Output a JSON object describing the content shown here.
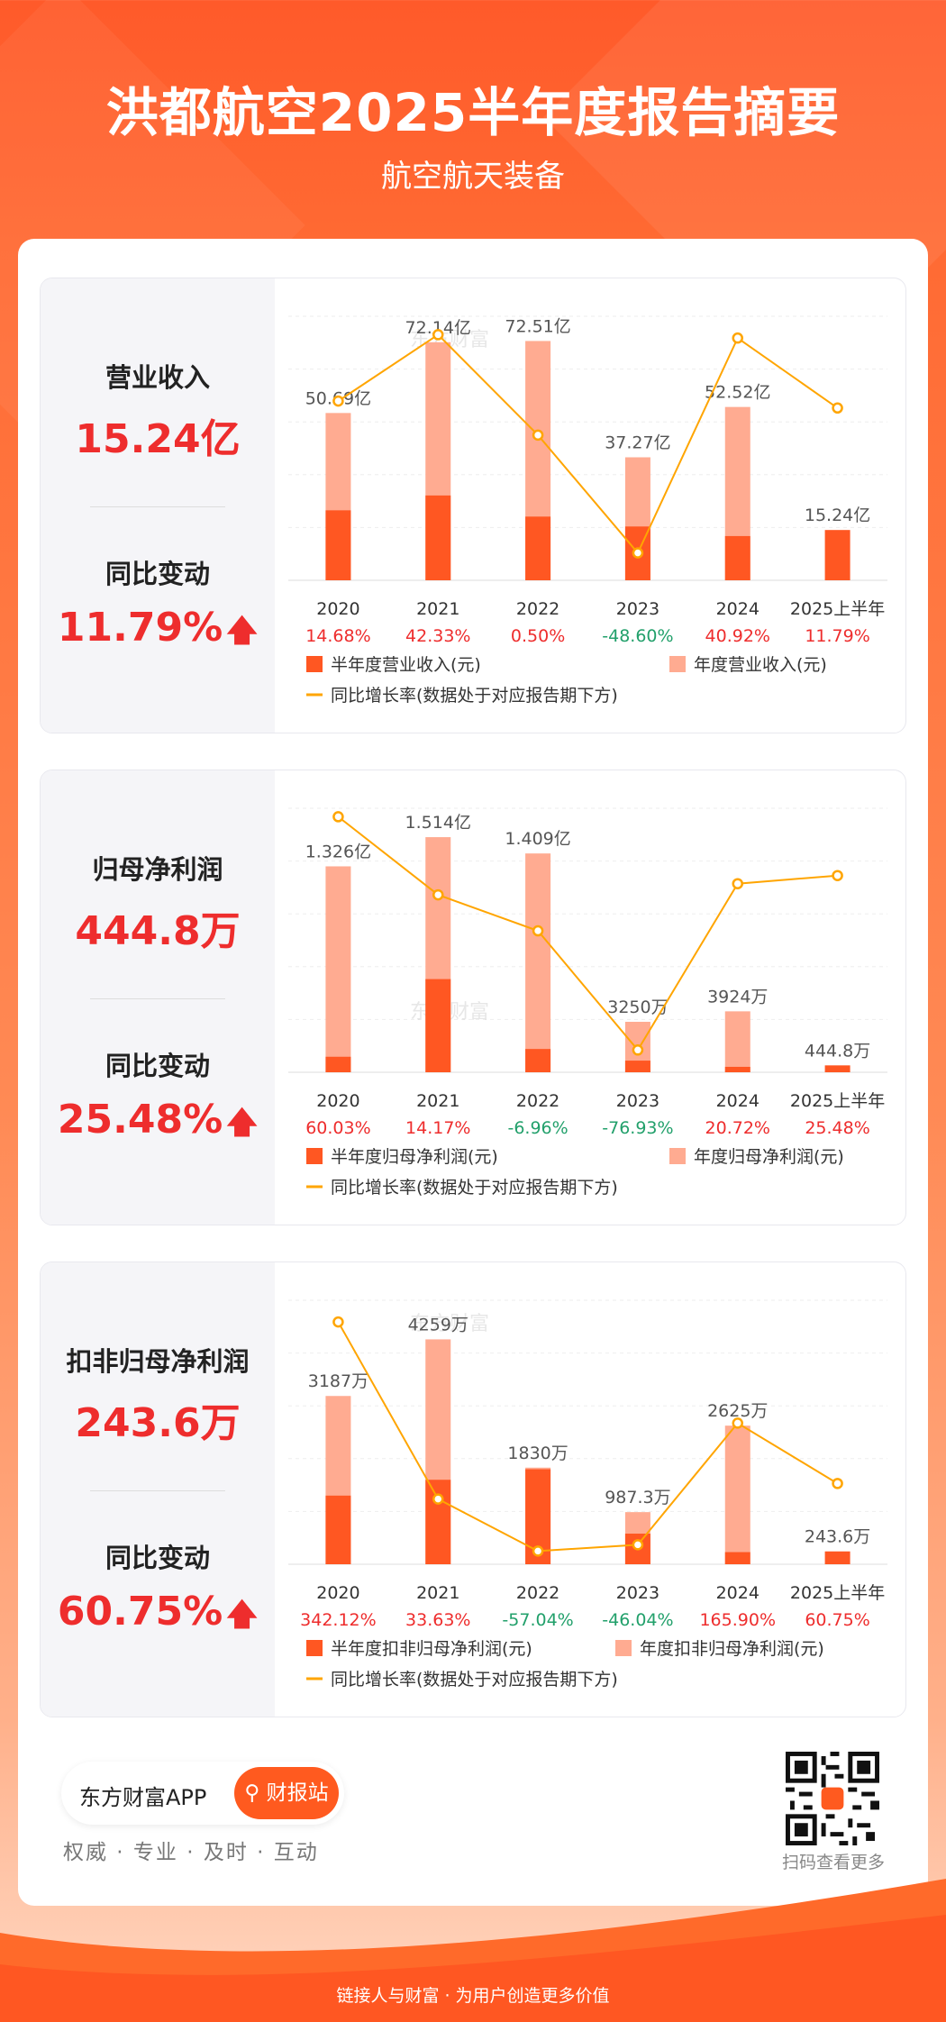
{
  "header": {
    "title": "洪都航空2025半年度报告摘要",
    "subtitle": "航空航天装备"
  },
  "watermark": "东方财富",
  "colors": {
    "half_bar": "#ff5722",
    "annual_bar": "#ffab91",
    "line": "#ffa500",
    "red": "#ee2d2d",
    "green": "#22a06b"
  },
  "panels": [
    {
      "metric_label": "营业收入",
      "metric_value": "15.24亿",
      "change_label": "同比变动",
      "change_value": "11.79%",
      "change_icon": "arrow-up-icon",
      "legend_half": "半年度营业收入(元)",
      "legend_annual": "年度营业收入(元)",
      "legend_line": "同比增长率(数据处于对应报告期下方)",
      "chart_data": {
        "type": "bar",
        "categories": [
          "2020",
          "2021",
          "2022",
          "2023",
          "2024",
          "2025上半年"
        ],
        "series": [
          {
            "name": "半年度营业收入(元)",
            "values": [
              21.2,
              25.7,
              19.3,
              16.3,
              13.4,
              15.24
            ]
          },
          {
            "name": "年度营业收入(元)",
            "values": [
              50.69,
              72.14,
              72.51,
              37.27,
              52.52,
              null
            ]
          }
        ],
        "bar_labels": [
          "50.69亿",
          "72.14亿",
          "72.51亿",
          "37.27亿",
          "52.52亿",
          "15.24亿"
        ],
        "growth": {
          "name": "同比增长率(数据处于对应报告期下方)",
          "values": [
            14.68,
            42.33,
            0.5,
            -48.6,
            40.92,
            11.79
          ],
          "labels": [
            "14.68%",
            "42.33%",
            "0.50%",
            "-48.60%",
            "40.92%",
            "11.79%"
          ],
          "ylim": [
            -60,
            50
          ]
        },
        "ylim": [
          0,
          80
        ]
      }
    },
    {
      "metric_label": "归母净利润",
      "metric_value": "444.8万",
      "change_label": "同比变动",
      "change_value": "25.48%",
      "change_icon": "arrow-up-icon",
      "legend_half": "半年度归母净利润(元)",
      "legend_annual": "年度归母净利润(元)",
      "legend_line": "同比增长率(数据处于对应报告期下方)",
      "chart_data": {
        "type": "bar",
        "categories": [
          "2020",
          "2021",
          "2022",
          "2023",
          "2024",
          "2025上半年"
        ],
        "series": [
          {
            "name": "半年度归母净利润(元)",
            "values": [
              0.1,
              0.6,
              0.15,
              0.075,
              0.035,
              0.04448
            ]
          },
          {
            "name": "年度归母净利润(元)",
            "values": [
              1.326,
              1.514,
              1.409,
              0.325,
              0.3924,
              null
            ]
          }
        ],
        "bar_labels": [
          "1.326亿",
          "1.514亿",
          "1.409亿",
          "3250万",
          "3924万",
          "444.8万"
        ],
        "growth": {
          "name": "同比增长率(数据处于对应报告期下方)",
          "values": [
            60.03,
            14.17,
            -6.96,
            -76.93,
            20.72,
            25.48
          ],
          "labels": [
            "60.03%",
            "14.17%",
            "-6.96%",
            "-76.93%",
            "20.72%",
            "25.48%"
          ],
          "ylim": [
            -90,
            65
          ]
        },
        "ylim": [
          0,
          1.7
        ]
      }
    },
    {
      "metric_label": "扣非归母净利润",
      "metric_value": "243.6万",
      "change_label": "同比变动",
      "change_value": "60.75%",
      "change_icon": "arrow-up-icon",
      "legend_half": "半年度扣非归母净利润(元)",
      "legend_annual": "年度扣非归母净利润(元)",
      "legend_line": "同比增长率(数据处于对应报告期下方)",
      "chart_data": {
        "type": "bar",
        "categories": [
          "2020",
          "2021",
          "2022",
          "2023",
          "2024",
          "2025上半年"
        ],
        "series": [
          {
            "name": "半年度扣非归母净利润(元)",
            "values": [
              1300,
              1600,
              1800,
              580,
              230,
              243.6
            ]
          },
          {
            "name": "年度扣非归母净利润(元)",
            "values": [
              3187,
              4259,
              1830,
              987.3,
              2625,
              null
            ]
          }
        ],
        "bar_labels": [
          "3187万",
          "4259万",
          "1830万",
          "987.3万",
          "2625万",
          "243.6万"
        ],
        "growth": {
          "name": "同比增长率(数据处于对应报告期下方)",
          "values": [
            342.12,
            33.63,
            -57.04,
            -46.04,
            165.9,
            60.75
          ],
          "labels": [
            "342.12%",
            "33.63%",
            "-57.04%",
            "-46.04%",
            "165.90%",
            "60.75%"
          ],
          "ylim": [
            -80,
            380
          ]
        },
        "ylim": [
          0,
          5000
        ]
      }
    }
  ],
  "footer": {
    "app_name": "东方财富APP",
    "button_label": "财报站",
    "slogan": "权威 · 专业 · 及时 · 互动",
    "qr_label": "扫码查看更多",
    "bottom_text": "链接人与财富 · 为用户创造更多价值"
  }
}
